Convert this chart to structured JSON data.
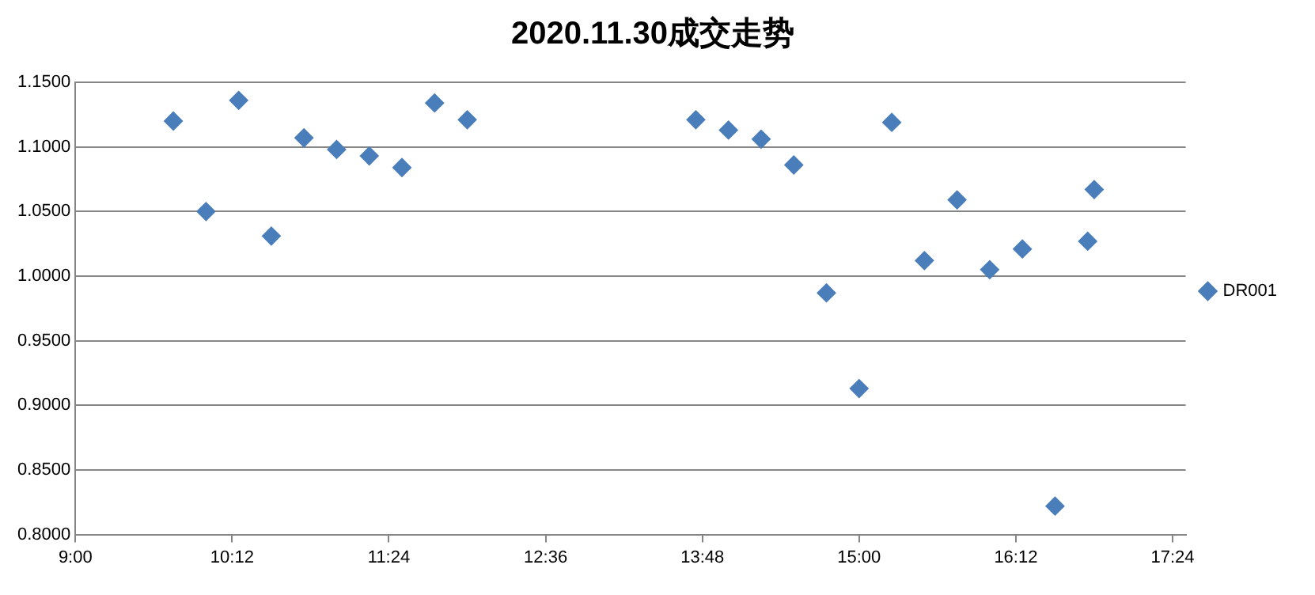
{
  "chart_data": {
    "type": "scatter",
    "title": "2020.11.30成交走势",
    "x": [
      9.75,
      10,
      10.25,
      10.5,
      10.75,
      11,
      11.25,
      11.5,
      11.75,
      12,
      13.75,
      14,
      14.25,
      14.5,
      14.75,
      15,
      15.25,
      15.5,
      15.75,
      16,
      16.25,
      16.5,
      16.75,
      16.8
    ],
    "series": [
      {
        "name": "DR001",
        "color": "#4a7ebb",
        "values": [
          1.12,
          1.05,
          1.136,
          1.031,
          1.107,
          1.098,
          1.093,
          1.084,
          1.134,
          1.121,
          1.121,
          1.113,
          1.106,
          1.086,
          0.987,
          0.913,
          1.119,
          1.012,
          1.059,
          1.005,
          1.021,
          0.822,
          1.027,
          1.067
        ]
      }
    ],
    "xlim": [
      9,
      17.5
    ],
    "xticks": [
      {
        "value": 9,
        "label": "9:00"
      },
      {
        "value": 10.2,
        "label": "10:12"
      },
      {
        "value": 11.4,
        "label": "11:24"
      },
      {
        "value": 12.6,
        "label": "12:36"
      },
      {
        "value": 13.8,
        "label": "13:48"
      },
      {
        "value": 15,
        "label": "15:00"
      },
      {
        "value": 16.2,
        "label": "16:12"
      },
      {
        "value": 17.4,
        "label": "17:24"
      }
    ],
    "ylim": [
      0.8,
      1.15
    ],
    "yticks": [
      {
        "value": 0.8,
        "label": "0.8000"
      },
      {
        "value": 0.85,
        "label": "0.8500"
      },
      {
        "value": 0.9,
        "label": "0.9000"
      },
      {
        "value": 0.95,
        "label": "0.9500"
      },
      {
        "value": 1,
        "label": "1.0000"
      },
      {
        "value": 1.05,
        "label": "1.0500"
      },
      {
        "value": 1.1,
        "label": "1.1000"
      },
      {
        "value": 1.15,
        "label": "1.1500"
      }
    ],
    "grid": "y",
    "legend": "right",
    "marker": "diamond"
  }
}
